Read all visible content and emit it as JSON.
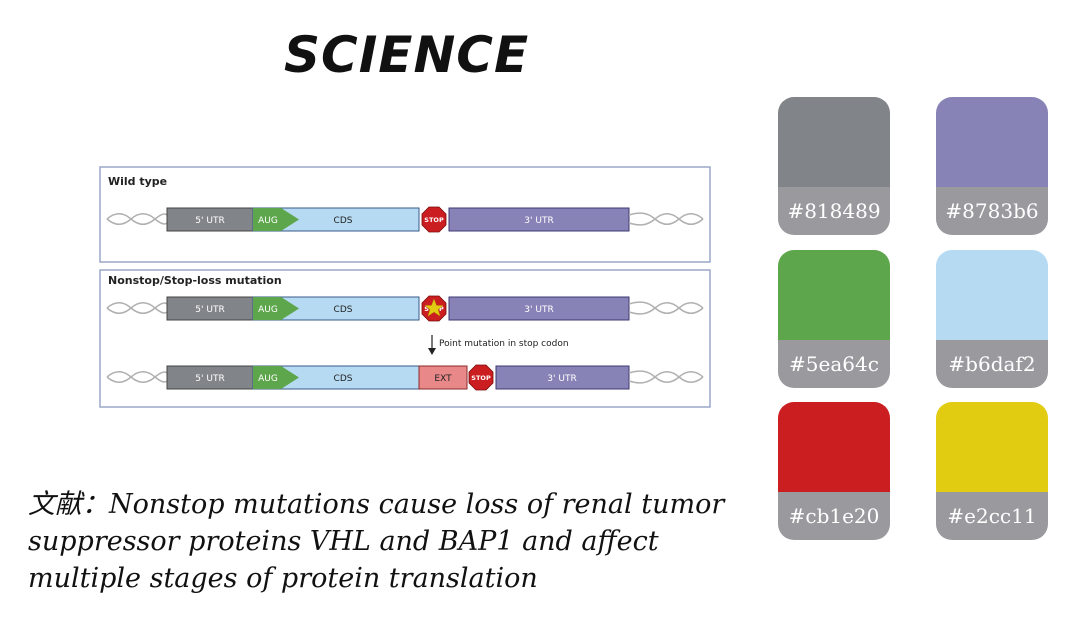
{
  "brand": "SCIENCE",
  "figure": {
    "panel1_title": "Wild type",
    "panel2_title": "Nonstop/Stop-loss mutation",
    "labels": {
      "utr5": "5' UTR",
      "aug": "AUG",
      "cds": "CDS",
      "stop": "STOP",
      "utr3": "3' UTR",
      "ext": "EXT",
      "point_mutation": "Point mutation in stop codon"
    },
    "colors": {
      "utr5": "#818489",
      "aug": "#5ea64c",
      "cds": "#b6daf2",
      "utr3": "#8783b6",
      "stop": "#cb1e20",
      "star": "#e2cc11",
      "ext": "#e88888"
    }
  },
  "citation": "文献：Nonstop mutations cause loss of renal tumor suppressor proteins VHL and BAP1 and affect multiple stages of protein translation",
  "palette": [
    {
      "hex": "#818489",
      "color": "#818489"
    },
    {
      "hex": "#8783b6",
      "color": "#8783b6"
    },
    {
      "hex": "#5ea64c",
      "color": "#5ea64c"
    },
    {
      "hex": "#b6daf2",
      "color": "#b6daf2"
    },
    {
      "hex": "#cb1e20",
      "color": "#cb1e20"
    },
    {
      "hex": "#e2cc11",
      "color": "#e2cc11"
    }
  ]
}
